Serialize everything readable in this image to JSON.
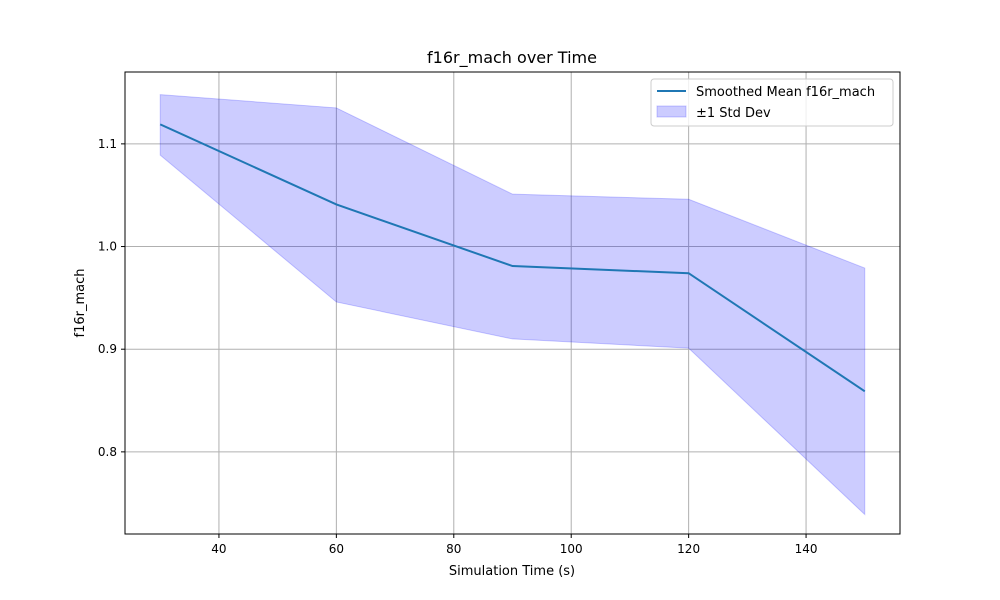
{
  "chart_data": {
    "type": "line",
    "title": "f16r_mach over Time",
    "xlabel": "Simulation Time (s)",
    "ylabel": "f16r_mach",
    "xlim": [
      24,
      156
    ],
    "ylim": [
      0.72,
      1.17
    ],
    "xticks": [
      40,
      60,
      80,
      100,
      120,
      140
    ],
    "yticks": [
      0.8,
      0.9,
      1.0,
      1.1
    ],
    "xtick_labels": [
      "40",
      "60",
      "80",
      "100",
      "120",
      "140"
    ],
    "ytick_labels": [
      "0.8",
      "0.9",
      "1.0",
      "1.1"
    ],
    "grid": true,
    "legend_position": "top-right",
    "x": [
      30,
      60,
      90,
      120,
      150
    ],
    "series": [
      {
        "name": "Smoothed Mean f16r_mach",
        "kind": "line",
        "color": "#1f77b4",
        "values": [
          1.119,
          1.041,
          0.981,
          0.974,
          0.859
        ]
      },
      {
        "name": "±1 Std Dev",
        "kind": "band",
        "color": "#0000ff",
        "opacity": 0.2,
        "lower": [
          1.089,
          0.946,
          0.91,
          0.901,
          0.739
        ],
        "upper": [
          1.148,
          1.135,
          1.051,
          1.046,
          0.979
        ]
      }
    ]
  }
}
